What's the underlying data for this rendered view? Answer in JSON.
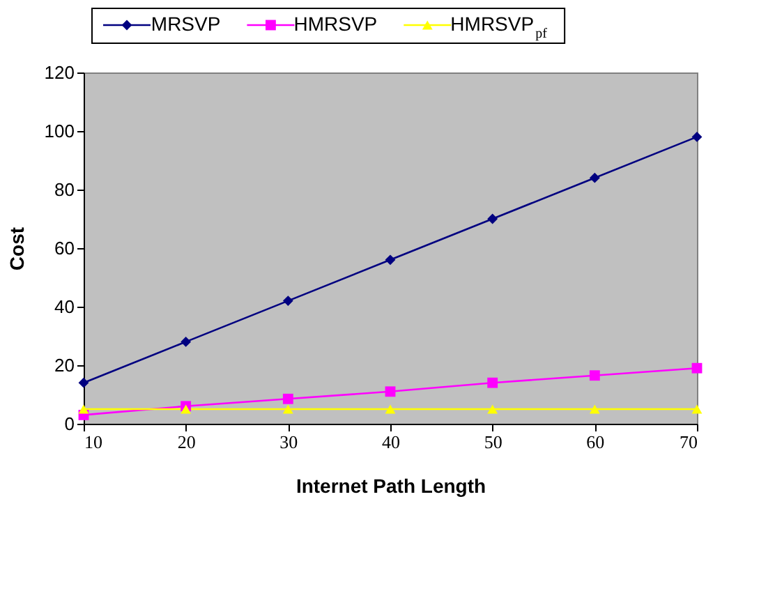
{
  "chart_data": {
    "type": "line",
    "xlabel": "Internet Path Length",
    "ylabel": "Cost",
    "x": [
      10,
      20,
      30,
      40,
      50,
      60,
      70
    ],
    "series": [
      {
        "name": "MRSVP",
        "color": "#000080",
        "marker": "diamond",
        "values": [
          14,
          28,
          42,
          56,
          70,
          84,
          98
        ]
      },
      {
        "name": "HMRSVP",
        "color": "#ff00ff",
        "marker": "square",
        "values": [
          3,
          6,
          8.5,
          11,
          14,
          16.5,
          19
        ]
      },
      {
        "name": "HMRSVP$_{pf}$",
        "color": "#ffff00",
        "marker": "triangle",
        "values": [
          5,
          5,
          5,
          5,
          5,
          5,
          5
        ]
      }
    ],
    "xlim": [
      10,
      70
    ],
    "xticks": [
      10,
      20,
      30,
      40,
      50,
      60,
      70
    ],
    "ylim": [
      0,
      120
    ],
    "yticks": [
      0,
      20,
      40,
      60,
      80,
      100,
      120
    ],
    "grid": false,
    "legend": "top",
    "line_style": "solid"
  }
}
